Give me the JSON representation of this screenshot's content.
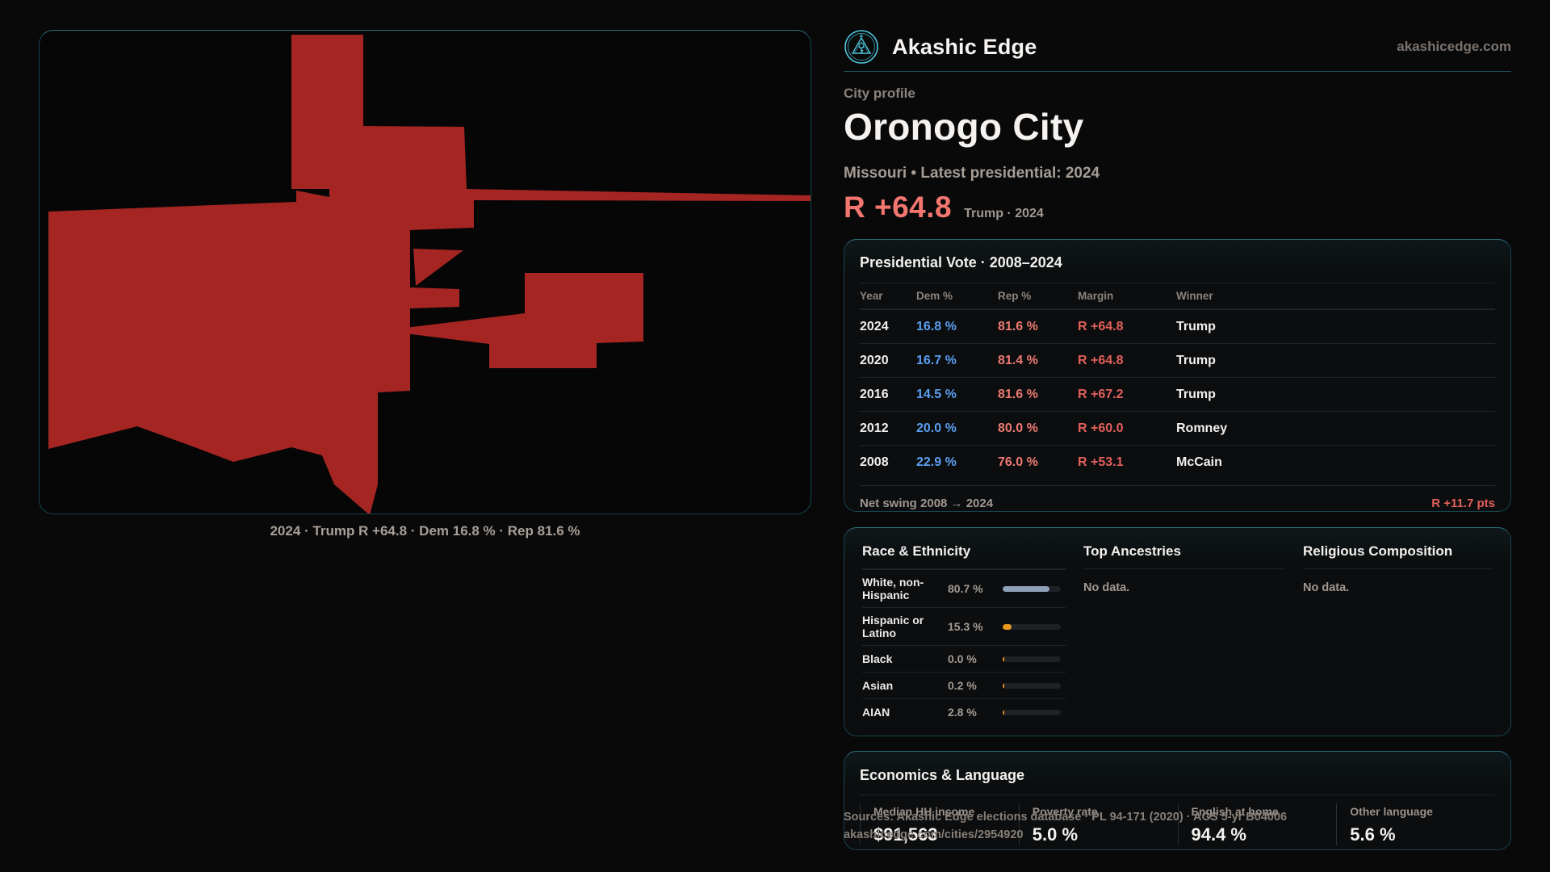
{
  "brand": {
    "name": "Akashic Edge",
    "site": "akashicedge.com"
  },
  "profile": {
    "eyebrow": "City profile",
    "title": "Oronogo City",
    "subtitle": "Missouri • Latest presidential: 2024",
    "margin_headline": "R +64.8",
    "margin_context": "Trump · 2024"
  },
  "map": {
    "caption": "2024 · Trump R +64.8 · Dem 16.8 % · Rep 81.6 %",
    "fill": "#a42522",
    "polygons": [
      "312,5 401,5 401,118 526,119 529,196 957,204 957,211 538,210 538,244 459,247 459,318 520,320 520,342 459,344 459,446 419,448 419,562 409,600 365,562 350,526 312,516 240,534 187,514 121,490 11,518 11,224 318,212 318,198 359,206 359,196 312,196",
      "453,368 601,350 601,300 748,300 748,385 690,387 690,418 557,418 557,388 453,375",
      "463,270 525,272 466,316"
    ]
  },
  "election_table": {
    "title": "Presidential Vote · 2008–2024",
    "columns": [
      "Year",
      "Dem %",
      "Rep %",
      "Margin",
      "Winner"
    ],
    "rows": [
      {
        "year": "2024",
        "dem": "16.8 %",
        "rep": "81.6 %",
        "margin": "R +64.8",
        "winner": "Trump"
      },
      {
        "year": "2020",
        "dem": "16.7 %",
        "rep": "81.4 %",
        "margin": "R +64.8",
        "winner": "Trump"
      },
      {
        "year": "2016",
        "dem": "14.5 %",
        "rep": "81.6 %",
        "margin": "R +67.2",
        "winner": "Trump"
      },
      {
        "year": "2012",
        "dem": "20.0 %",
        "rep": "80.0 %",
        "margin": "R +60.0",
        "winner": "Romney"
      },
      {
        "year": "2008",
        "dem": "22.9 %",
        "rep": "76.0 %",
        "margin": "R +53.1",
        "winner": "McCain"
      }
    ],
    "swing_label": "Net swing 2008 → 2024",
    "swing_value": "R +11.7 pts"
  },
  "demographics": {
    "race": {
      "title": "Race & Ethnicity",
      "rows": [
        {
          "label": "White, non-Hispanic",
          "value": "80.7 %",
          "pct": 80.7,
          "color": "#8fa1b8"
        },
        {
          "label": "Hispanic or Latino",
          "value": "15.3 %",
          "pct": 15.3,
          "color": "#e8971f"
        },
        {
          "label": "Black",
          "value": "0.0 %",
          "pct": 0,
          "color": "#e8971f"
        },
        {
          "label": "Asian",
          "value": "0.2 %",
          "pct": 0.2,
          "color": "#e8971f"
        },
        {
          "label": "AIAN",
          "value": "2.8 %",
          "pct": 2.8,
          "color": "#e8971f"
        }
      ]
    },
    "ancestries": {
      "title": "Top Ancestries",
      "empty": "No data."
    },
    "religion": {
      "title": "Religious Composition",
      "empty": "No data."
    }
  },
  "economics": {
    "title": "Economics & Language",
    "stats": [
      {
        "label": "Median HH income",
        "value": "$91,563"
      },
      {
        "label": "Poverty rate",
        "value": "5.0 %"
      },
      {
        "label": "English at home",
        "value": "94.4 %"
      },
      {
        "label": "Other language",
        "value": "5.6 %"
      }
    ]
  },
  "footer": {
    "line1": "Sources: Akashic Edge elections database · PL 94-171 (2020) · ACS 5-yr B04006",
    "line2": "akashicedge.com/cities/2954920"
  }
}
